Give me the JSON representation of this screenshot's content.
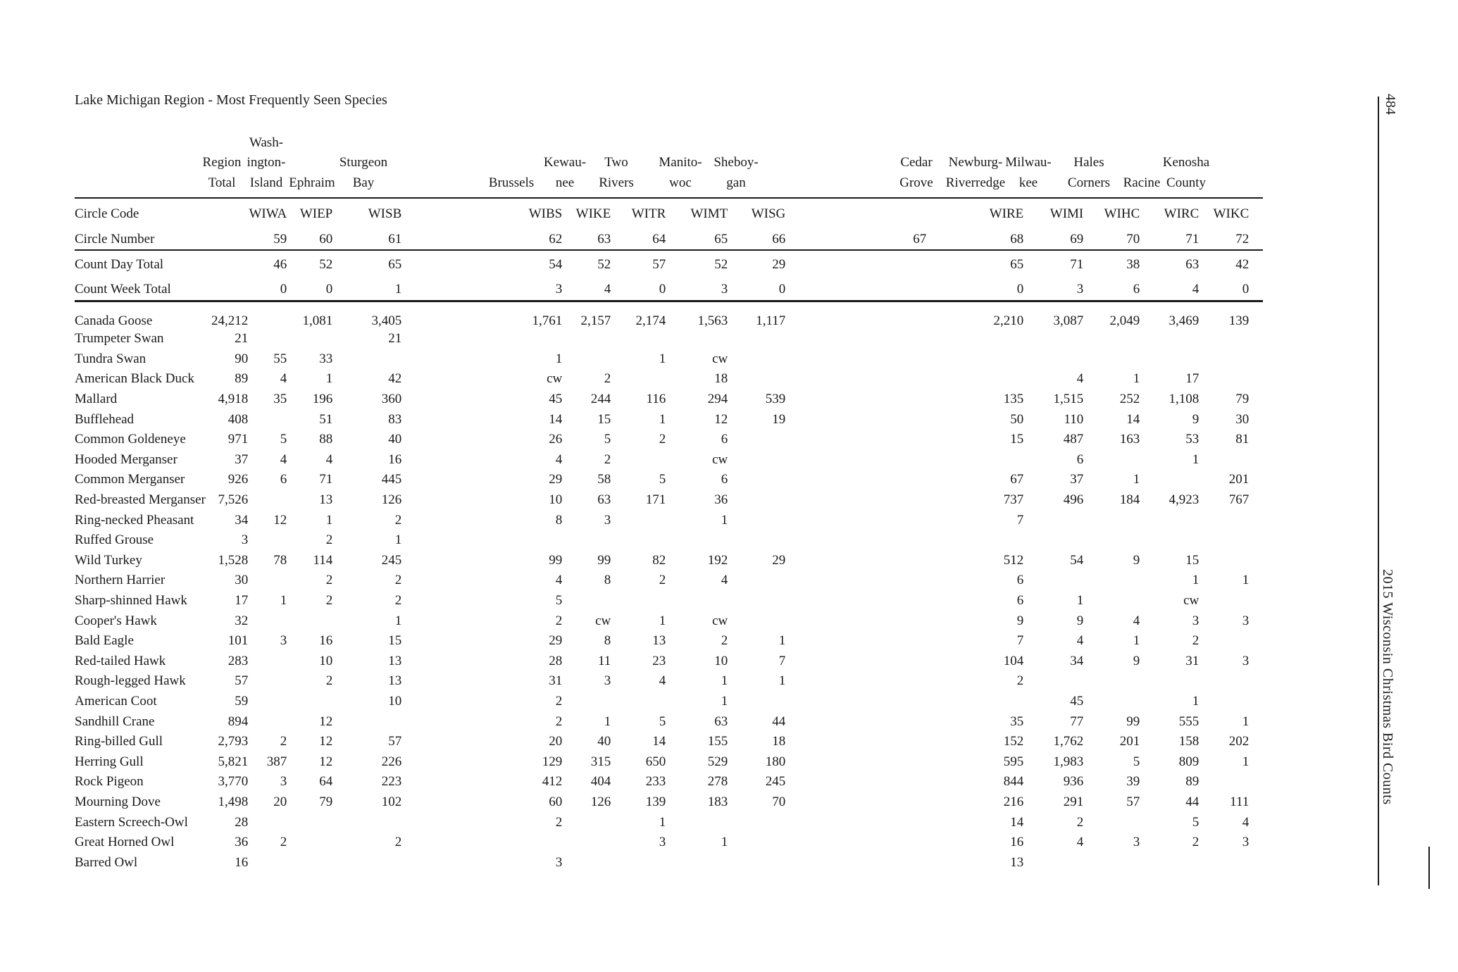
{
  "page": {
    "title": "Lake Michigan Region - Most Frequently Seen Species",
    "page_number": "484",
    "sidebar_title": "2015 Wisconsin Christmas Bird Counts"
  },
  "table": {
    "row_labels": {
      "circle_code": "Circle Code",
      "circle_number": "Circle Number",
      "count_day": "Count Day Total",
      "count_week": "Count Week Total"
    },
    "columns": [
      {
        "id": "region-total",
        "header_lines": [
          "Region",
          "Total"
        ],
        "code": "",
        "number": "",
        "count_day": "",
        "count_week": ""
      },
      {
        "id": "washington-island",
        "header_lines": [
          "Wash-",
          "ington-",
          "Island"
        ],
        "code": "WIWA",
        "number": "59",
        "count_day": "46",
        "count_week": "0"
      },
      {
        "id": "ephraim",
        "header_lines": [
          "Ephraim"
        ],
        "code": "WIEP",
        "number": "60",
        "count_day": "52",
        "count_week": "0"
      },
      {
        "id": "sturgeon-bay",
        "header_lines": [
          "Sturgeon",
          "Bay"
        ],
        "code": "WISB",
        "number": "61",
        "count_day": "65",
        "count_week": "1"
      },
      {
        "id": "brussels",
        "header_lines": [
          "Brussels"
        ],
        "code": "WIBS",
        "number": "62",
        "count_day": "54",
        "count_week": "3"
      },
      {
        "id": "kewaunee",
        "header_lines": [
          "Kewau-",
          "nee"
        ],
        "code": "WIKE",
        "number": "63",
        "count_day": "52",
        "count_week": "4"
      },
      {
        "id": "two-rivers",
        "header_lines": [
          "Two",
          "Rivers"
        ],
        "code": "WITR",
        "number": "64",
        "count_day": "57",
        "count_week": "0"
      },
      {
        "id": "manitowoc",
        "header_lines": [
          "Manito-",
          "woc"
        ],
        "code": "WIMT",
        "number": "65",
        "count_day": "52",
        "count_week": "3"
      },
      {
        "id": "sheboygan",
        "header_lines": [
          "Sheboy-",
          "gan"
        ],
        "code": "WISG",
        "number": "66",
        "count_day": "29",
        "count_week": "0"
      },
      {
        "id": "cedar-grove",
        "header_lines": [
          "Cedar",
          "Grove"
        ],
        "code": "",
        "number": "67",
        "count_day": "",
        "count_week": ""
      },
      {
        "id": "newburg-riverredge",
        "header_lines": [
          "Newburg-",
          "Riverredge"
        ],
        "code": "WIRE",
        "number": "68",
        "count_day": "65",
        "count_week": "0"
      },
      {
        "id": "milwaukee",
        "header_lines": [
          "Milwau-",
          "kee"
        ],
        "code": "WIMI",
        "number": "69",
        "count_day": "71",
        "count_week": "3"
      },
      {
        "id": "hales-corners",
        "header_lines": [
          "Hales",
          "Corners"
        ],
        "code": "WIHC",
        "number": "70",
        "count_day": "38",
        "count_week": "6"
      },
      {
        "id": "racine",
        "header_lines": [
          "Racine"
        ],
        "code": "WIRC",
        "number": "71",
        "count_day": "63",
        "count_week": "4"
      },
      {
        "id": "kenosha-county",
        "header_lines": [
          "Kenosha",
          "County"
        ],
        "code": "WIKC",
        "number": "72",
        "count_day": "42",
        "count_week": "0"
      }
    ],
    "species_rows": [
      {
        "name": "Canada Goose",
        "values": [
          "24,212",
          "",
          "1,081",
          "3,405",
          "1,761",
          "2,157",
          "2,174",
          "1,563",
          "1,117",
          "",
          "2,210",
          "3,087",
          "2,049",
          "3,469",
          "139"
        ]
      },
      {
        "name": "Trumpeter Swan",
        "values": [
          "21",
          "",
          "",
          "21",
          "",
          "",
          "",
          "",
          "",
          "",
          "",
          "",
          "",
          "",
          ""
        ]
      },
      {
        "name": "Tundra Swan",
        "values": [
          "90",
          "55",
          "33",
          "",
          "1",
          "",
          "1",
          "cw",
          "",
          "",
          "",
          "",
          "",
          "",
          ""
        ]
      },
      {
        "name": "American Black Duck",
        "values": [
          "89",
          "4",
          "1",
          "42",
          "cw",
          "2",
          "",
          "18",
          "",
          "",
          "",
          "4",
          "1",
          "17",
          ""
        ]
      },
      {
        "name": "Mallard",
        "values": [
          "4,918",
          "35",
          "196",
          "360",
          "45",
          "244",
          "116",
          "294",
          "539",
          "",
          "135",
          "1,515",
          "252",
          "1,108",
          "79"
        ]
      },
      {
        "name": "Bufflehead",
        "values": [
          "408",
          "",
          "51",
          "83",
          "14",
          "15",
          "1",
          "12",
          "19",
          "",
          "50",
          "110",
          "14",
          "9",
          "30"
        ]
      },
      {
        "name": "Common Goldeneye",
        "values": [
          "971",
          "5",
          "88",
          "40",
          "26",
          "5",
          "2",
          "6",
          "",
          "",
          "15",
          "487",
          "163",
          "53",
          "81"
        ]
      },
      {
        "name": "Hooded Merganser",
        "values": [
          "37",
          "4",
          "4",
          "16",
          "4",
          "2",
          "",
          "cw",
          "",
          "",
          "",
          "6",
          "",
          "1",
          ""
        ]
      },
      {
        "name": "Common Merganser",
        "values": [
          "926",
          "6",
          "71",
          "445",
          "29",
          "58",
          "5",
          "6",
          "",
          "",
          "67",
          "37",
          "1",
          "",
          "201"
        ]
      },
      {
        "name": "Red-breasted Merganser",
        "values": [
          "7,526",
          "",
          "13",
          "126",
          "10",
          "63",
          "171",
          "36",
          "",
          "",
          "737",
          "496",
          "184",
          "4,923",
          "767"
        ]
      },
      {
        "name": "Ring-necked Pheasant",
        "values": [
          "34",
          "12",
          "1",
          "2",
          "8",
          "3",
          "",
          "1",
          "",
          "",
          "7",
          "",
          "",
          "",
          ""
        ]
      },
      {
        "name": "Ruffed Grouse",
        "values": [
          "3",
          "",
          "2",
          "1",
          "",
          "",
          "",
          "",
          "",
          "",
          "",
          "",
          "",
          "",
          ""
        ]
      },
      {
        "name": "Wild Turkey",
        "values": [
          "1,528",
          "78",
          "114",
          "245",
          "99",
          "99",
          "82",
          "192",
          "29",
          "",
          "512",
          "54",
          "9",
          "15",
          ""
        ]
      },
      {
        "name": "Northern Harrier",
        "values": [
          "30",
          "",
          "2",
          "2",
          "4",
          "8",
          "2",
          "4",
          "",
          "",
          "6",
          "",
          "",
          "1",
          "1"
        ]
      },
      {
        "name": "Sharp-shinned Hawk",
        "values": [
          "17",
          "1",
          "2",
          "2",
          "5",
          "",
          "",
          "",
          "",
          "",
          "6",
          "1",
          "",
          "cw",
          ""
        ]
      },
      {
        "name": "Cooper's Hawk",
        "values": [
          "32",
          "",
          "",
          "1",
          "2",
          "cw",
          "1",
          "cw",
          "",
          "",
          "9",
          "9",
          "4",
          "3",
          "3"
        ]
      },
      {
        "name": "Bald Eagle",
        "values": [
          "101",
          "3",
          "16",
          "15",
          "29",
          "8",
          "13",
          "2",
          "1",
          "",
          "7",
          "4",
          "1",
          "2",
          ""
        ]
      },
      {
        "name": "Red-tailed Hawk",
        "values": [
          "283",
          "",
          "10",
          "13",
          "28",
          "11",
          "23",
          "10",
          "7",
          "",
          "104",
          "34",
          "9",
          "31",
          "3"
        ]
      },
      {
        "name": "Rough-legged Hawk",
        "values": [
          "57",
          "",
          "2",
          "13",
          "31",
          "3",
          "4",
          "1",
          "1",
          "",
          "2",
          "",
          "",
          "",
          ""
        ]
      },
      {
        "name": "American Coot",
        "values": [
          "59",
          "",
          "",
          "10",
          "2",
          "",
          "",
          "1",
          "",
          "",
          "",
          "45",
          "",
          "1",
          ""
        ]
      },
      {
        "name": "Sandhill Crane",
        "values": [
          "894",
          "",
          "12",
          "",
          "2",
          "1",
          "5",
          "63",
          "44",
          "",
          "35",
          "77",
          "99",
          "555",
          "1"
        ]
      },
      {
        "name": "Ring-billed Gull",
        "values": [
          "2,793",
          "2",
          "12",
          "57",
          "20",
          "40",
          "14",
          "155",
          "18",
          "",
          "152",
          "1,762",
          "201",
          "158",
          "202"
        ]
      },
      {
        "name": "Herring Gull",
        "values": [
          "5,821",
          "387",
          "12",
          "226",
          "129",
          "315",
          "650",
          "529",
          "180",
          "",
          "595",
          "1,983",
          "5",
          "809",
          "1"
        ]
      },
      {
        "name": "Rock Pigeon",
        "values": [
          "3,770",
          "3",
          "64",
          "223",
          "412",
          "404",
          "233",
          "278",
          "245",
          "",
          "844",
          "936",
          "39",
          "89",
          ""
        ]
      },
      {
        "name": "Mourning Dove",
        "values": [
          "1,498",
          "20",
          "79",
          "102",
          "60",
          "126",
          "139",
          "183",
          "70",
          "",
          "216",
          "291",
          "57",
          "44",
          "111"
        ]
      },
      {
        "name": "Eastern Screech-Owl",
        "values": [
          "28",
          "",
          "",
          "",
          "2",
          "",
          "1",
          "",
          "",
          "",
          "14",
          "2",
          "",
          "5",
          "4"
        ]
      },
      {
        "name": "Great Horned Owl",
        "values": [
          "36",
          "2",
          "",
          "2",
          "",
          "",
          "3",
          "1",
          "",
          "",
          "16",
          "4",
          "3",
          "2",
          "3"
        ]
      },
      {
        "name": "Barred Owl",
        "values": [
          "16",
          "",
          "",
          "",
          "3",
          "",
          "",
          "",
          "",
          "",
          "13",
          "",
          "",
          "",
          ""
        ]
      }
    ]
  }
}
